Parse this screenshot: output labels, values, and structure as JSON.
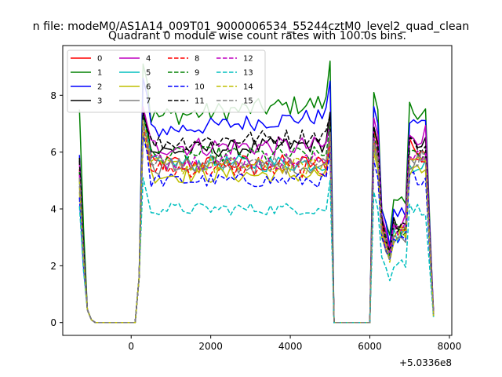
{
  "chart_data": {
    "type": "line",
    "suptitle": "n file: modeM0/AS1A14_009T01_9000006534_55244cztM0_level2_quad_clean",
    "title": "Quadrant 0 module wise count rates with 100.0s bins.",
    "xlabel": "",
    "ylabel": "",
    "x_offset_label": "+5.0336e8",
    "xlim": [
      -1720,
      8060
    ],
    "ylim": [
      -0.45,
      9.75
    ],
    "xticks": [
      0,
      2000,
      4000,
      6000,
      8000
    ],
    "xtick_labels": [
      "0",
      "2000",
      "4000",
      "6000",
      "8000"
    ],
    "yticks": [
      0,
      2,
      4,
      6,
      8
    ],
    "ytick_labels": [
      "0",
      "2",
      "4",
      "6",
      "8"
    ],
    "legend_position": "upper-left",
    "legend_ncol": 4,
    "x_start": -1300,
    "x_step": 100,
    "segments": [
      {
        "i0": 0,
        "i1": 15,
        "shape": "gap",
        "start": 1.0,
        "end": 0.2
      },
      {
        "i0": 15,
        "i1": 64,
        "shape": "plateau"
      },
      {
        "i0": 64,
        "i1": 74,
        "shape": "gap",
        "start": 0.2,
        "end": 0.2
      },
      {
        "i0": 74,
        "i1": 89,
        "shape": "burst"
      }
    ],
    "series": [
      {
        "name": "0",
        "color": "#ff0000",
        "dash": "solid",
        "level": 5.6,
        "tilt": 0.0,
        "noise": 0.32,
        "start": 5.4,
        "peak": 7.0,
        "end": 6.8,
        "burst": 6.2,
        "tail": 0.3
      },
      {
        "name": "1",
        "color": "#008000",
        "dash": "solid",
        "level": 7.2,
        "tilt": 0.55,
        "noise": 0.35,
        "start": 7.5,
        "peak": 9.1,
        "end": 9.2,
        "burst": 7.5,
        "tail": 0.2
      },
      {
        "name": "2",
        "color": "#0000ff",
        "dash": "solid",
        "level": 6.7,
        "tilt": 0.6,
        "noise": 0.3,
        "start": 5.9,
        "peak": 8.6,
        "end": 8.5,
        "burst": 7.0,
        "tail": 0.4
      },
      {
        "name": "3",
        "color": "#000000",
        "dash": "solid",
        "level": 6.0,
        "tilt": 0.3,
        "noise": 0.3,
        "start": 5.8,
        "peak": 7.5,
        "end": 7.4,
        "burst": 6.3,
        "tail": 0.3
      },
      {
        "name": "4",
        "color": "#bf00bf",
        "dash": "solid",
        "level": 6.2,
        "tilt": 0.0,
        "noise": 0.35,
        "start": 5.6,
        "peak": 7.6,
        "end": 7.0,
        "burst": 6.6,
        "tail": 0.4
      },
      {
        "name": "5",
        "color": "#00bfbf",
        "dash": "solid",
        "level": 5.6,
        "tilt": 0.0,
        "noise": 0.3,
        "start": 5.0,
        "peak": 7.3,
        "end": 6.8,
        "burst": 5.6,
        "tail": 0.3
      },
      {
        "name": "6",
        "color": "#bfbf00",
        "dash": "solid",
        "level": 5.2,
        "tilt": 0.0,
        "noise": 0.3,
        "start": 4.6,
        "peak": 6.7,
        "end": 6.1,
        "burst": 5.4,
        "tail": 0.2
      },
      {
        "name": "7",
        "color": "#808080",
        "dash": "solid",
        "level": 5.5,
        "tilt": 0.0,
        "noise": 0.3,
        "start": 4.8,
        "peak": 7.0,
        "end": 6.3,
        "burst": 5.6,
        "tail": 0.3
      },
      {
        "name": "8",
        "color": "#ff0000",
        "dash": "dashed",
        "level": 5.4,
        "tilt": 0.0,
        "noise": 0.3,
        "start": 5.1,
        "peak": 6.9,
        "end": 6.5,
        "burst": 5.8,
        "tail": 0.3
      },
      {
        "name": "9",
        "color": "#008000",
        "dash": "dashed",
        "level": 5.9,
        "tilt": 0.0,
        "noise": 0.3,
        "start": 5.3,
        "peak": 7.3,
        "end": 7.0,
        "burst": 6.0,
        "tail": 0.3
      },
      {
        "name": "10",
        "color": "#0000ff",
        "dash": "dashed",
        "level": 5.0,
        "tilt": 0.0,
        "noise": 0.25,
        "start": 4.4,
        "peak": 6.6,
        "end": 6.0,
        "burst": 5.1,
        "tail": 0.3
      },
      {
        "name": "11",
        "color": "#000000",
        "dash": "dashed",
        "level": 6.3,
        "tilt": 0.3,
        "noise": 0.3,
        "start": 5.7,
        "peak": 7.4,
        "end": 7.3,
        "burst": 6.3,
        "tail": 0.3
      },
      {
        "name": "12",
        "color": "#bf00bf",
        "dash": "dashed",
        "level": 5.7,
        "tilt": 0.0,
        "noise": 0.3,
        "start": 5.2,
        "peak": 7.1,
        "end": 6.7,
        "burst": 5.9,
        "tail": 0.3
      },
      {
        "name": "13",
        "color": "#00bfbf",
        "dash": "dashed",
        "level": 4.0,
        "tilt": 0.0,
        "noise": 0.22,
        "start": 4.1,
        "peak": 5.1,
        "end": 5.0,
        "burst": 4.0,
        "tail": 0.2
      },
      {
        "name": "14",
        "color": "#bfbf00",
        "dash": "dashed",
        "level": 5.5,
        "tilt": 0.0,
        "noise": 0.3,
        "start": 5.0,
        "peak": 7.1,
        "end": 6.6,
        "burst": 5.7,
        "tail": 0.3
      },
      {
        "name": "15",
        "color": "#808080",
        "dash": "dashed",
        "level": 5.6,
        "tilt": 0.0,
        "noise": 0.3,
        "start": 5.1,
        "peak": 7.0,
        "end": 6.7,
        "burst": 5.8,
        "tail": 0.3
      }
    ]
  }
}
